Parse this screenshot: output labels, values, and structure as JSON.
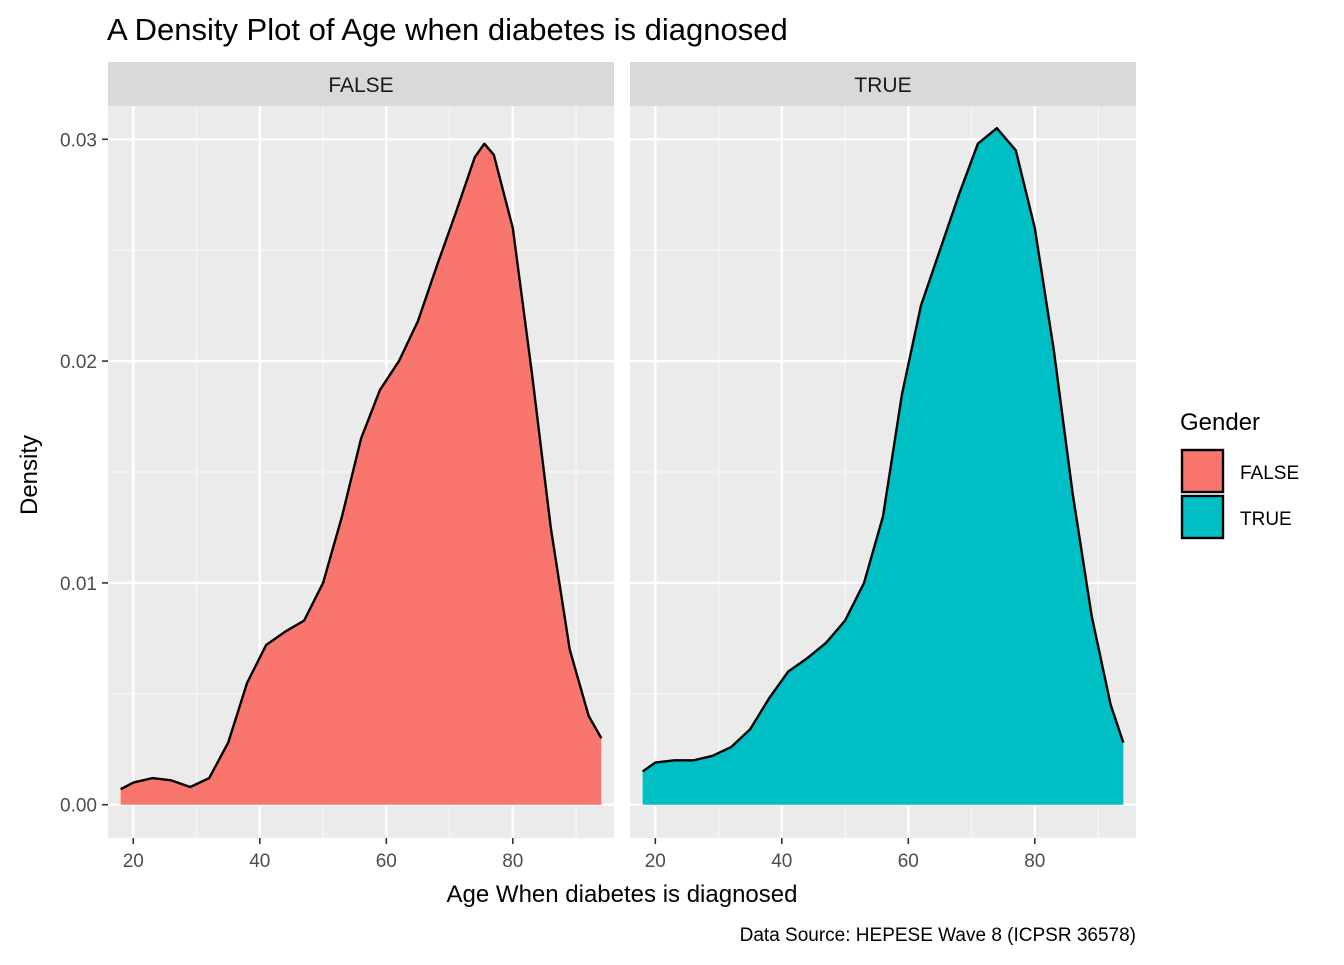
{
  "chart_data": {
    "type": "area",
    "subtype": "density",
    "title": "A Density Plot of Age when diabetes is diagnosed",
    "xlabel": "Age When diabetes is diagnosed",
    "ylabel": "Density",
    "caption": "Data Source: HEPESE Wave 8 (ICPSR 36578)",
    "xlim": [
      16,
      96
    ],
    "ylim": [
      -0.0015,
      0.0315
    ],
    "x_ticks": [
      20,
      40,
      60,
      80
    ],
    "x_tick_labels": [
      "20",
      "40",
      "60",
      "80"
    ],
    "y_ticks": [
      0,
      0.01,
      0.02,
      0.03
    ],
    "y_tick_labels": [
      "0.00",
      "0.01",
      "0.02",
      "0.03"
    ],
    "grid": true,
    "facet_by": "Gender",
    "legend": {
      "title": "Gender",
      "position": "right",
      "entries": [
        {
          "label": "FALSE",
          "color": "#F8766D"
        },
        {
          "label": "TRUE",
          "color": "#00BFC4"
        }
      ]
    },
    "panels": [
      {
        "strip": "FALSE",
        "color": "#F8766D",
        "points": [
          [
            18,
            0.0007
          ],
          [
            20,
            0.001
          ],
          [
            23,
            0.0012
          ],
          [
            26,
            0.0011
          ],
          [
            29,
            0.0008
          ],
          [
            32,
            0.0012
          ],
          [
            35,
            0.0028
          ],
          [
            38,
            0.0055
          ],
          [
            41,
            0.0072
          ],
          [
            44,
            0.0078
          ],
          [
            47,
            0.0083
          ],
          [
            50,
            0.01
          ],
          [
            53,
            0.013
          ],
          [
            56,
            0.0165
          ],
          [
            59,
            0.0187
          ],
          [
            62,
            0.02
          ],
          [
            65,
            0.0218
          ],
          [
            68,
            0.0243
          ],
          [
            71,
            0.0267
          ],
          [
            74,
            0.0292
          ],
          [
            75.5,
            0.0298
          ],
          [
            77,
            0.0293
          ],
          [
            80,
            0.026
          ],
          [
            83,
            0.0195
          ],
          [
            86,
            0.0125
          ],
          [
            89,
            0.007
          ],
          [
            92,
            0.004
          ],
          [
            94,
            0.003
          ]
        ]
      },
      {
        "strip": "TRUE",
        "color": "#00BFC4",
        "points": [
          [
            18,
            0.0015
          ],
          [
            20,
            0.0019
          ],
          [
            23,
            0.002
          ],
          [
            26,
            0.002
          ],
          [
            29,
            0.0022
          ],
          [
            32,
            0.0026
          ],
          [
            35,
            0.0034
          ],
          [
            38,
            0.0048
          ],
          [
            41,
            0.006
          ],
          [
            44,
            0.0066
          ],
          [
            47,
            0.0073
          ],
          [
            50,
            0.0083
          ],
          [
            53,
            0.01
          ],
          [
            56,
            0.013
          ],
          [
            59,
            0.0185
          ],
          [
            62,
            0.0225
          ],
          [
            65,
            0.025
          ],
          [
            68,
            0.0275
          ],
          [
            71,
            0.0298
          ],
          [
            74,
            0.0305
          ],
          [
            77,
            0.0295
          ],
          [
            80,
            0.026
          ],
          [
            83,
            0.0205
          ],
          [
            86,
            0.014
          ],
          [
            89,
            0.0085
          ],
          [
            92,
            0.0045
          ],
          [
            94,
            0.0028
          ]
        ]
      }
    ]
  }
}
